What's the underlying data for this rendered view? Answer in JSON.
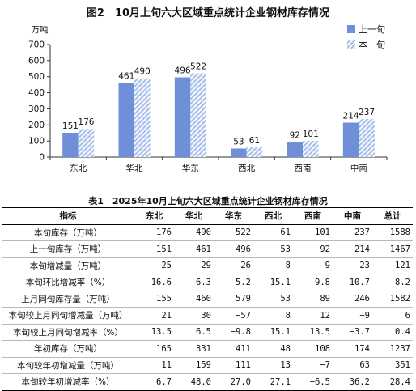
{
  "chart_title": "图2　10月上旬六大区域重点统计企业钢材库存情况",
  "chart_data": {
    "type": "bar",
    "title": "图2　10月上旬六大区域重点统计企业钢材库存情况",
    "ylabel": "万吨",
    "xlabel": "",
    "ylim": [
      0,
      700
    ],
    "yticks": [
      0,
      100,
      200,
      300,
      400,
      500,
      600,
      700
    ],
    "grid": false,
    "legend_position": "top-right",
    "categories": [
      "东北",
      "华北",
      "华东",
      "西北",
      "西南",
      "中南"
    ],
    "series": [
      {
        "name": "上一旬",
        "values": [
          151,
          461,
          496,
          53,
          92,
          214
        ],
        "color": "#6f8fd9",
        "pattern": "solid"
      },
      {
        "name": "本　旬",
        "values": [
          176,
          490,
          522,
          61,
          101,
          237
        ],
        "color": "#a9c0ea",
        "pattern": "diagonal-hatch"
      }
    ]
  },
  "table": {
    "title": "表1　2025年10月上旬六大区域重点统计企业钢材库存情况",
    "headers": [
      "指标",
      "东北",
      "华北",
      "华东",
      "西北",
      "西南",
      "中南",
      "总计"
    ],
    "rows": [
      [
        "本旬库存（万吨）",
        "176",
        "490",
        "522",
        "61",
        "101",
        "237",
        "1588"
      ],
      [
        "上一旬库存（万吨）",
        "151",
        "461",
        "496",
        "53",
        "92",
        "214",
        "1467"
      ],
      [
        "本旬增减量（万吨）",
        "25",
        "29",
        "26",
        "8",
        "9",
        "23",
        "121"
      ],
      [
        "本旬环比增减率（%）",
        "16.6",
        "6.3",
        "5.2",
        "15.1",
        "9.8",
        "10.7",
        "8.2"
      ],
      [
        "上月同旬库存量（万吨）",
        "155",
        "460",
        "579",
        "53",
        "89",
        "246",
        "1582"
      ],
      [
        "本旬较上月同旬增减量（万吨）",
        "21",
        "30",
        "−57",
        "8",
        "12",
        "−9",
        "6"
      ],
      [
        "本旬较上月同旬增减率（%）",
        "13.5",
        "6.5",
        "−9.8",
        "15.1",
        "13.5",
        "−3.7",
        "0.4"
      ],
      [
        "年初库存（万吨）",
        "165",
        "331",
        "411",
        "48",
        "108",
        "174",
        "1237"
      ],
      [
        "本旬较年初增减量（万吨）",
        "11",
        "159",
        "111",
        "13",
        "−7",
        "63",
        "351"
      ],
      [
        "本旬较年初增减率（%）",
        "6.7",
        "48.0",
        "27.0",
        "27.1",
        "−6.5",
        "36.2",
        "28.4"
      ]
    ]
  }
}
